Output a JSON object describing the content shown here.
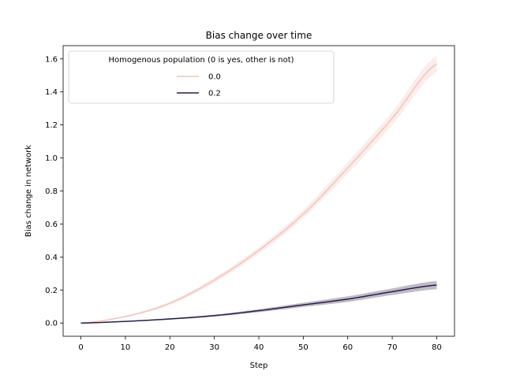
{
  "chart_data": {
    "type": "line",
    "title": "Bias change over time",
    "xlabel": "Step",
    "ylabel": "Bias change in network",
    "xlim": [
      -4,
      84
    ],
    "ylim": [
      -0.08,
      1.68
    ],
    "xticks": [
      0,
      10,
      20,
      30,
      40,
      50,
      60,
      70,
      80
    ],
    "xtick_labels": [
      "0",
      "10",
      "20",
      "30",
      "40",
      "50",
      "60",
      "70",
      "80"
    ],
    "yticks": [
      0.0,
      0.2,
      0.4,
      0.6,
      0.8,
      1.0,
      1.2,
      1.4,
      1.6
    ],
    "ytick_labels": [
      "0.0",
      "0.2",
      "0.4",
      "0.6",
      "0.8",
      "1.0",
      "1.2",
      "1.4",
      "1.6"
    ],
    "grid": false,
    "legend": {
      "title": "Homogenous population (0 is yes, other is not)",
      "placement": "upper-left"
    },
    "x": [
      0,
      10,
      20,
      30,
      40,
      50,
      60,
      70,
      80
    ],
    "series": [
      {
        "name": "0.0",
        "color": "#f0c4bc",
        "values": [
          0.0,
          0.04,
          0.12,
          0.26,
          0.44,
          0.66,
          0.94,
          1.24,
          1.57
        ],
        "lower": [
          0.0,
          0.035,
          0.11,
          0.245,
          0.42,
          0.635,
          0.905,
          1.2,
          1.52
        ],
        "upper": [
          0.0,
          0.045,
          0.13,
          0.275,
          0.46,
          0.685,
          0.975,
          1.28,
          1.62
        ]
      },
      {
        "name": "0.2",
        "color": "#2b1f45",
        "values": [
          0.0,
          0.01,
          0.025,
          0.045,
          0.075,
          0.11,
          0.145,
          0.19,
          0.23
        ],
        "lower": [
          0.0,
          0.008,
          0.021,
          0.039,
          0.066,
          0.097,
          0.128,
          0.17,
          0.205
        ],
        "upper": [
          0.0,
          0.012,
          0.029,
          0.051,
          0.084,
          0.123,
          0.162,
          0.21,
          0.255
        ]
      }
    ]
  }
}
